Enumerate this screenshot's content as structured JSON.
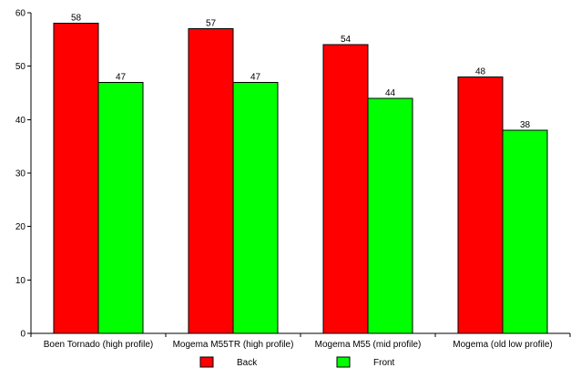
{
  "chart_data": {
    "type": "bar",
    "categories": [
      "Boen Tornado (high profile)",
      "Mogema M55TR (high profile)",
      "Mogema M55 (mid profile)",
      "Mogema (old low profile)"
    ],
    "series": [
      {
        "name": "Back",
        "color": "#ff0000",
        "values": [
          58,
          57,
          54,
          48
        ]
      },
      {
        "name": "Front",
        "color": "#00ff00",
        "values": [
          47,
          47,
          44,
          38
        ]
      }
    ],
    "ylim": [
      0,
      60
    ],
    "yticks": [
      0,
      10,
      20,
      30,
      40,
      50,
      60
    ],
    "title": "",
    "xlabel": "",
    "ylabel": "",
    "grid": false,
    "legend_position": "bottom",
    "data_labels": true
  }
}
